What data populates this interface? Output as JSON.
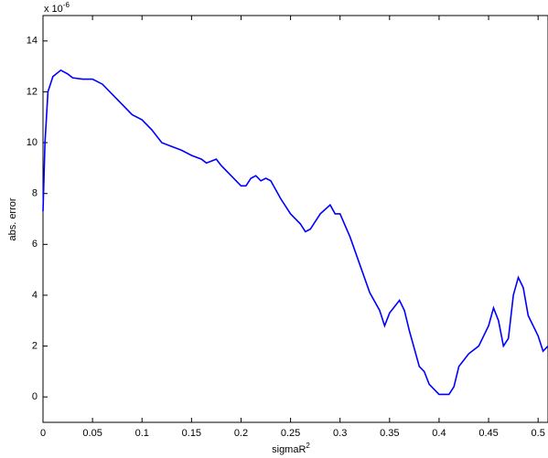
{
  "chart_data": {
    "type": "line",
    "xlabel": "sigmaR",
    "xlabel_superscript": "2",
    "ylabel": "abs. error",
    "multiplier": "x 10",
    "multiplier_exponent": "-6",
    "x": [
      0,
      0.002,
      0.005,
      0.01,
      0.018,
      0.025,
      0.03,
      0.04,
      0.05,
      0.06,
      0.07,
      0.08,
      0.09,
      0.1,
      0.11,
      0.12,
      0.13,
      0.14,
      0.15,
      0.16,
      0.165,
      0.175,
      0.18,
      0.19,
      0.2,
      0.205,
      0.21,
      0.215,
      0.22,
      0.225,
      0.23,
      0.24,
      0.25,
      0.26,
      0.265,
      0.27,
      0.28,
      0.29,
      0.295,
      0.3,
      0.31,
      0.32,
      0.33,
      0.34,
      0.345,
      0.35,
      0.36,
      0.365,
      0.37,
      0.38,
      0.385,
      0.39,
      0.4,
      0.41,
      0.415,
      0.42,
      0.43,
      0.44,
      0.45,
      0.455,
      0.46,
      0.465,
      0.47,
      0.475,
      0.48,
      0.485,
      0.49,
      0.5,
      0.505,
      0.51
    ],
    "series": [
      {
        "name": "abs. error",
        "color": "#0000ff",
        "values": [
          7.3,
          10,
          12,
          12.6,
          12.85,
          12.7,
          12.55,
          12.5,
          12.5,
          12.3,
          11.9,
          11.5,
          11.1,
          10.9,
          10.5,
          10,
          9.85,
          9.7,
          9.5,
          9.35,
          9.2,
          9.35,
          9.1,
          8.7,
          8.3,
          8.3,
          8.6,
          8.7,
          8.5,
          8.6,
          8.5,
          7.8,
          7.2,
          6.8,
          6.5,
          6.6,
          7.2,
          7.55,
          7.2,
          7.2,
          6.3,
          5.2,
          4.1,
          3.4,
          2.8,
          3.3,
          3.8,
          3.4,
          2.6,
          1.2,
          1.0,
          0.5,
          0.1,
          0.1,
          0.4,
          1.2,
          1.7,
          2.0,
          2.8,
          3.5,
          3.0,
          2.0,
          2.3,
          4.0,
          4.7,
          4.3,
          3.2,
          2.4,
          1.8,
          2.0
        ]
      }
    ],
    "xlim": [
      0,
      0.51
    ],
    "ylim": [
      -1,
      15
    ],
    "xticks": [
      0,
      0.05,
      0.1,
      0.15,
      0.2,
      0.25,
      0.3,
      0.35,
      0.4,
      0.45,
      0.5
    ],
    "yticks": [
      0,
      2,
      4,
      6,
      8,
      10,
      12,
      14
    ]
  }
}
